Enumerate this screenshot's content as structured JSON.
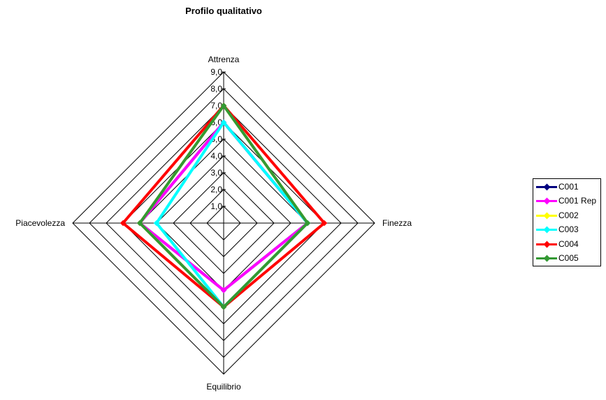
{
  "chart_data": {
    "type": "radar",
    "title": "Profilo qualitativo",
    "axes": [
      "Attrenza",
      "Finezza",
      "Equilibrio",
      "Piacevolezza"
    ],
    "rlim": [
      0,
      9
    ],
    "ticks": [
      "1,0",
      "2,0",
      "3,0",
      "4,0",
      "5,0",
      "6,0",
      "7,0",
      "8,0",
      "9,0"
    ],
    "grid": true,
    "legend_position": "right",
    "series": [
      {
        "name": "C001",
        "color": "#000080",
        "values": [
          6,
          5,
          4,
          5
        ]
      },
      {
        "name": "C001 Rep",
        "color": "#ff00ff",
        "values": [
          6,
          5,
          4,
          5
        ]
      },
      {
        "name": "C002",
        "color": "#ffff00",
        "values": [
          7,
          5,
          5,
          5
        ]
      },
      {
        "name": "C003",
        "color": "#00ffff",
        "values": [
          6,
          5,
          5,
          4
        ]
      },
      {
        "name": "C004",
        "color": "#ff0000",
        "values": [
          7,
          6,
          5,
          6
        ]
      },
      {
        "name": "C005",
        "color": "#339933",
        "values": [
          7,
          5,
          5,
          5
        ]
      }
    ]
  }
}
